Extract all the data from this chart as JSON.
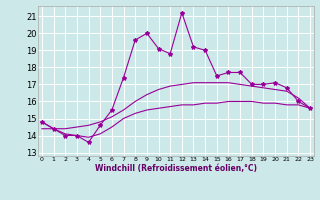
{
  "bg_color": "#cce8e8",
  "grid_color": "#ffffff",
  "line_color": "#990099",
  "x_ticks": [
    0,
    1,
    2,
    3,
    4,
    5,
    6,
    7,
    8,
    9,
    10,
    11,
    12,
    13,
    14,
    15,
    16,
    17,
    18,
    19,
    20,
    21,
    22,
    23
  ],
  "y_ticks": [
    13,
    14,
    15,
    16,
    17,
    18,
    19,
    20,
    21
  ],
  "ylim": [
    12.8,
    21.6
  ],
  "xlim": [
    -0.3,
    23.3
  ],
  "xlabel": "Windchill (Refroidissement éolien,°C)",
  "series1_y": [
    14.8,
    14.4,
    14.0,
    14.0,
    13.6,
    14.6,
    15.5,
    17.4,
    19.6,
    20.0,
    19.1,
    18.8,
    21.2,
    19.2,
    19.0,
    17.5,
    17.7,
    17.7,
    17.0,
    17.0,
    17.1,
    16.8,
    16.0,
    15.6
  ],
  "series2_y": [
    14.4,
    14.4,
    14.4,
    14.5,
    14.6,
    14.8,
    15.1,
    15.5,
    16.0,
    16.4,
    16.7,
    16.9,
    17.0,
    17.1,
    17.1,
    17.1,
    17.1,
    17.0,
    16.9,
    16.8,
    16.7,
    16.6,
    16.2,
    15.6
  ],
  "series3_y": [
    14.8,
    14.4,
    14.1,
    14.0,
    13.9,
    14.1,
    14.5,
    15.0,
    15.3,
    15.5,
    15.6,
    15.7,
    15.8,
    15.8,
    15.9,
    15.9,
    16.0,
    16.0,
    16.0,
    15.9,
    15.9,
    15.8,
    15.8,
    15.6
  ]
}
